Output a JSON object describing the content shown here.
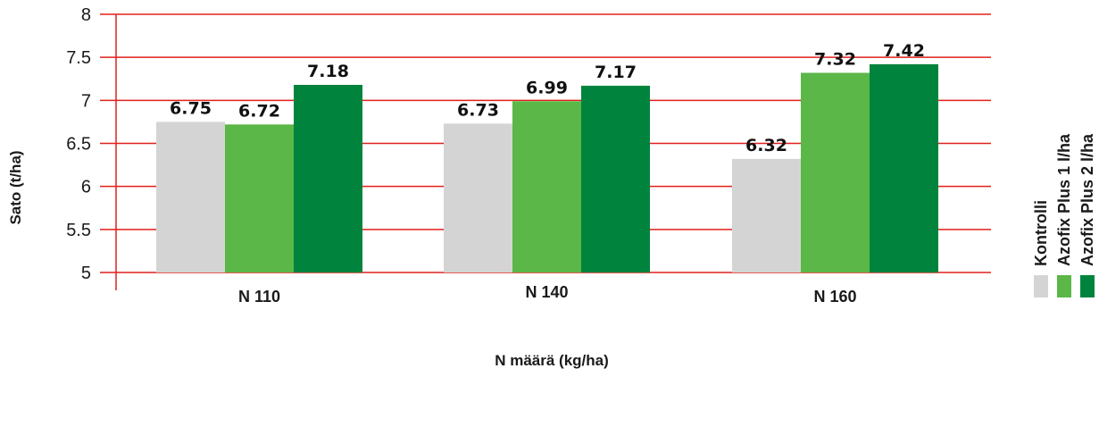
{
  "chart_data": {
    "type": "bar",
    "categories": [
      "N 110",
      "N 140",
      "N 160"
    ],
    "series": [
      {
        "name": "Kontrolli",
        "values": [
          6.75,
          6.73,
          6.32
        ],
        "color": "#d4d4d4"
      },
      {
        "name": "Azofix Plus 1 l/ha",
        "values": [
          6.72,
          6.99,
          7.32
        ],
        "color": "#5bb747"
      },
      {
        "name": "Azofix Plus 2 l/ha",
        "values": [
          7.18,
          7.17,
          7.42
        ],
        "color": "#00843d"
      }
    ],
    "data_labels": [
      [
        "6.75",
        "6.73",
        "6.32"
      ],
      [
        "6.72",
        "6.99",
        "7.32"
      ],
      [
        "7.18",
        "7.17",
        "7.42"
      ]
    ],
    "title": "",
    "xlabel": "N määrä (kg/ha)",
    "ylabel": "Sato (t/ha)",
    "ylim": [
      5,
      8
    ],
    "yticks": [
      5,
      5.5,
      6,
      6.5,
      7,
      7.5,
      8
    ],
    "ytick_labels": [
      "5",
      "5.5",
      "6",
      "6.5",
      "7",
      "7.5",
      "8"
    ],
    "grid": true,
    "grid_color": "#e0201c",
    "legend_position": "right"
  }
}
